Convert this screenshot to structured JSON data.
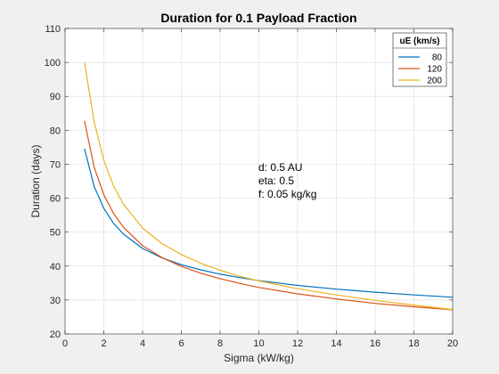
{
  "chart_data": {
    "type": "line",
    "title": "Duration for 0.1 Payload Fraction",
    "xlabel": "Sigma (kW/kg)",
    "ylabel": "Duration (days)",
    "xlim": [
      0,
      20
    ],
    "ylim": [
      20,
      110
    ],
    "xticks": [
      0,
      2,
      4,
      6,
      8,
      10,
      12,
      14,
      16,
      18,
      20
    ],
    "yticks": [
      20,
      30,
      40,
      50,
      60,
      70,
      80,
      90,
      100,
      110
    ],
    "grid": true,
    "legend": {
      "title": "uE (km/s)",
      "placement": "top-right"
    },
    "annotations": [
      "d: 0.5 AU",
      "eta: 0.5",
      "f: 0.05 kg/kg"
    ],
    "series": [
      {
        "name": "80",
        "color": "#0072BD",
        "x": [
          1,
          1.5,
          2,
          2.5,
          3,
          4,
          5,
          6,
          7,
          8,
          9,
          10,
          12,
          14,
          16,
          18,
          20
        ],
        "y": [
          74.6,
          63.5,
          57.0,
          52.6,
          49.5,
          45.2,
          42.4,
          40.4,
          38.9,
          37.6,
          36.6,
          35.7,
          34.3,
          33.2,
          32.3,
          31.5,
          30.8
        ]
      },
      {
        "name": "120",
        "color": "#D95319",
        "x": [
          1,
          1.5,
          2,
          2.5,
          3,
          4,
          5,
          6,
          7,
          8,
          9,
          10,
          12,
          14,
          16,
          18,
          20
        ],
        "y": [
          82.8,
          69.2,
          61.0,
          55.5,
          51.5,
          46.0,
          42.5,
          39.9,
          37.9,
          36.3,
          34.9,
          33.7,
          31.8,
          30.3,
          29.0,
          28.0,
          27.1
        ]
      },
      {
        "name": "200",
        "color": "#EDB120",
        "x": [
          1,
          1.5,
          2,
          2.5,
          3,
          4,
          5,
          6,
          7,
          8,
          9,
          10,
          12,
          14,
          16,
          18,
          20
        ],
        "y": [
          100.0,
          82.6,
          71.2,
          63.6,
          58.3,
          51.2,
          46.6,
          43.4,
          40.8,
          38.8,
          37.0,
          35.6,
          33.3,
          31.5,
          29.9,
          28.5,
          27.2
        ]
      }
    ]
  }
}
